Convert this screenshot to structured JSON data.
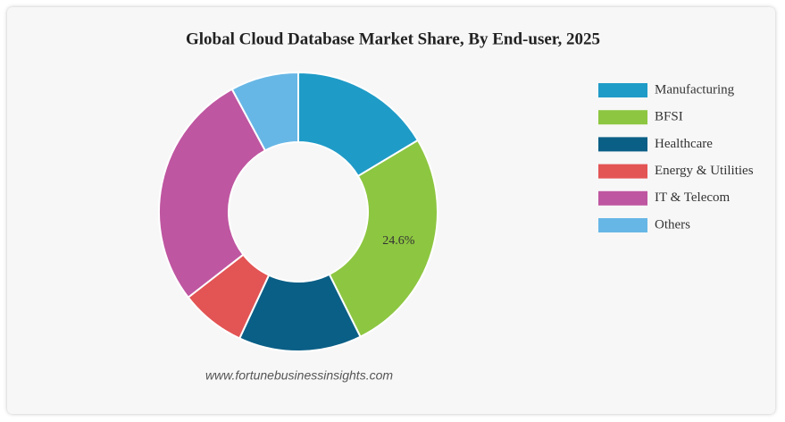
{
  "chart_data": {
    "type": "donut",
    "title": "Global Cloud Database Market Share, By End-user, 2025",
    "source": "www.fortunebusinessinsights.com",
    "series": [
      {
        "name": "Manufacturing",
        "color": "#1f9bc7",
        "values": [
          15.4
        ]
      },
      {
        "name": "BFSI",
        "color": "#8dc641",
        "values": [
          24.6
        ],
        "value_labels": [
          "24.6%"
        ]
      },
      {
        "name": "Healthcare",
        "color": "#0a5f86",
        "values": [
          13.4
        ]
      },
      {
        "name": "Energy & Utilities",
        "color": "#e35454",
        "values": [
          7.1
        ]
      },
      {
        "name": "IT & Telecom",
        "color": "#bf56a1",
        "values": [
          25.9
        ]
      },
      {
        "name": "Others",
        "color": "#67b7e6",
        "values": [
          7.4
        ]
      }
    ],
    "legend": "right"
  }
}
